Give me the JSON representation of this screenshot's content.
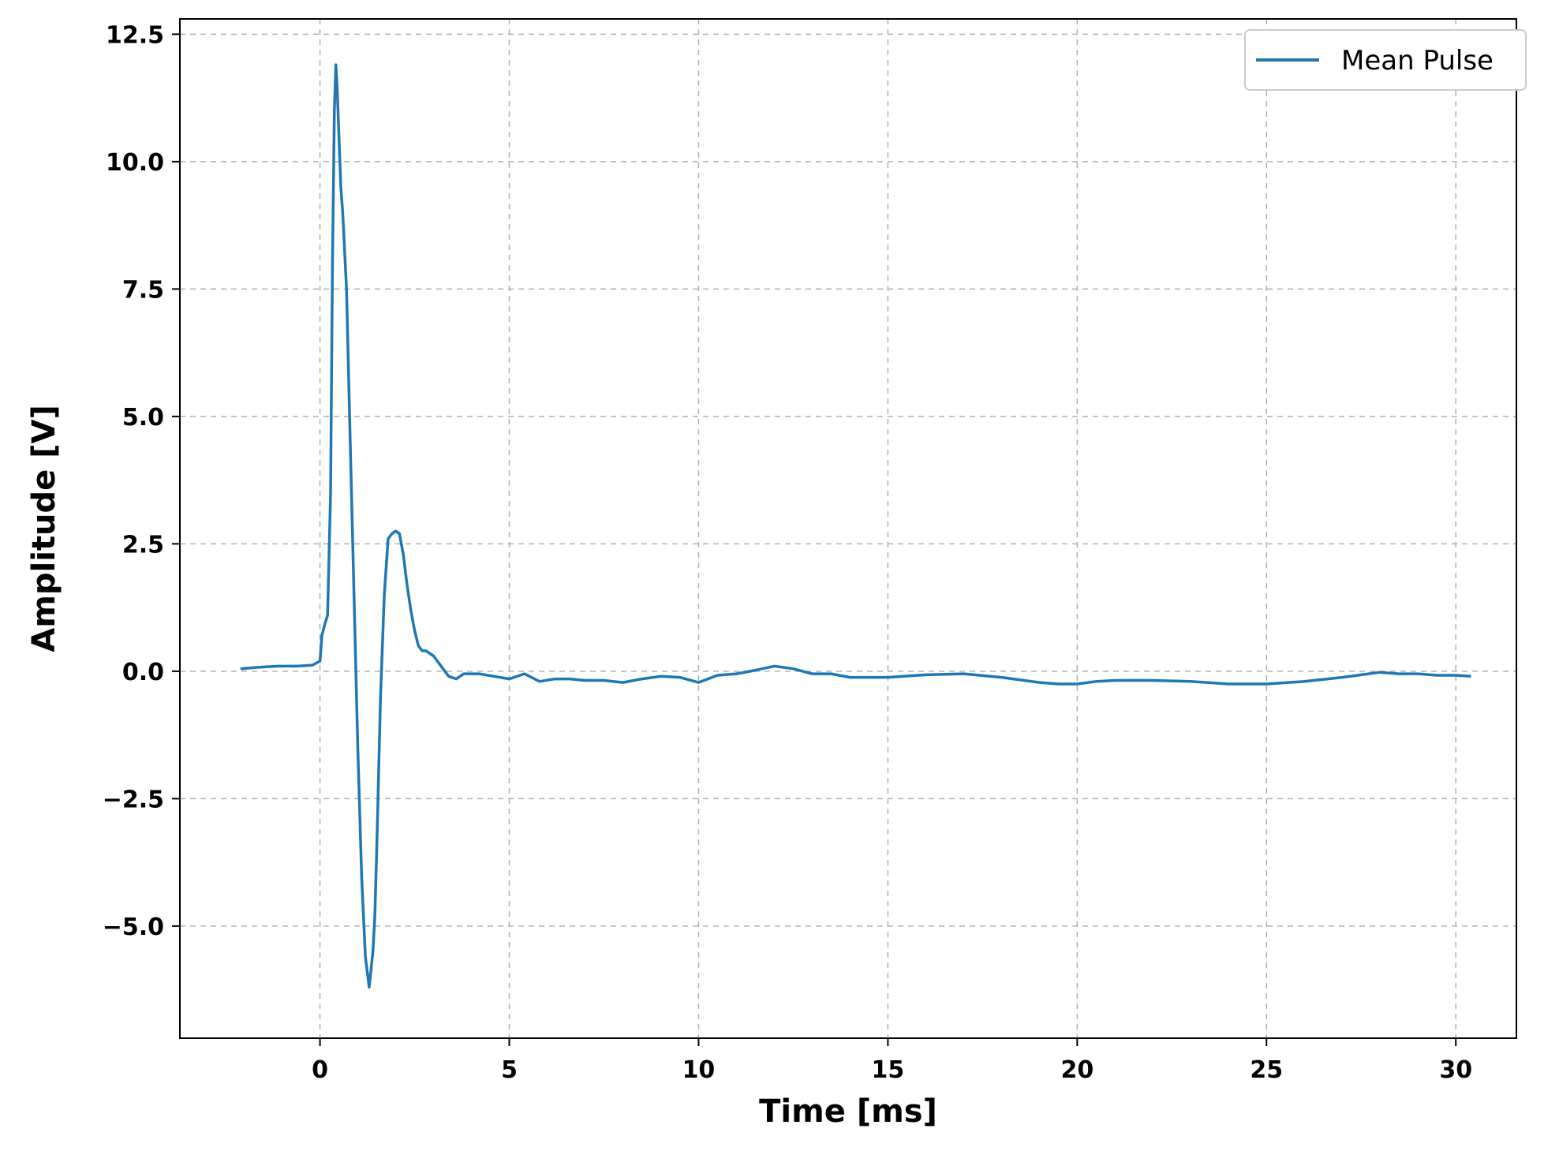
{
  "chart_data": {
    "type": "line",
    "title": "",
    "xlabel": "Time [ms]",
    "ylabel": "Amplitude [V]",
    "xlim": [
      -3.7,
      31.6
    ],
    "ylim": [
      -7.2,
      12.8
    ],
    "xticks": [
      0,
      5,
      10,
      15,
      20,
      25,
      30
    ],
    "xtick_labels": [
      "0",
      "5",
      "10",
      "15",
      "20",
      "25",
      "30"
    ],
    "yticks": [
      12.5,
      10.0,
      7.5,
      5.0,
      2.5,
      0.0,
      -2.5,
      -5.0
    ],
    "ytick_labels": [
      "12.5",
      "10.0",
      "7.5",
      "5.0",
      "2.5",
      "0.0",
      "−2.5",
      "−5.0"
    ],
    "grid": true,
    "grid_style": "dashed",
    "legend_position": "upper right",
    "series": [
      {
        "name": "Mean Pulse",
        "color": "#1f77b4",
        "x": [
          -2.1,
          -1.6,
          -1.1,
          -0.6,
          -0.2,
          0.0,
          0.05,
          0.12,
          0.2,
          0.28,
          0.33,
          0.38,
          0.42,
          0.45,
          0.5,
          0.55,
          0.6,
          0.7,
          0.8,
          0.9,
          1.0,
          1.1,
          1.2,
          1.3,
          1.4,
          1.45,
          1.5,
          1.6,
          1.7,
          1.8,
          1.9,
          2.0,
          2.1,
          2.2,
          2.3,
          2.4,
          2.5,
          2.6,
          2.7,
          2.8,
          3.0,
          3.2,
          3.4,
          3.6,
          3.8,
          4.2,
          4.6,
          5.0,
          5.4,
          5.8,
          6.2,
          6.6,
          7.0,
          7.5,
          8.0,
          8.5,
          9.0,
          9.5,
          10.0,
          10.5,
          11.0,
          11.5,
          12.0,
          12.5,
          13.0,
          13.5,
          14.0,
          15.0,
          16.0,
          17.0,
          18.0,
          19.0,
          19.5,
          20.0,
          20.5,
          21.0,
          22.0,
          23.0,
          24.0,
          25.0,
          26.0,
          27.0,
          28.0,
          28.5,
          29.0,
          29.5,
          30.0,
          30.4
        ],
        "y": [
          0.05,
          0.08,
          0.1,
          0.1,
          0.12,
          0.2,
          0.7,
          0.9,
          1.1,
          3.5,
          8.0,
          11.0,
          11.9,
          11.5,
          10.5,
          9.5,
          9.0,
          7.5,
          4.5,
          1.5,
          -1.5,
          -4.0,
          -5.6,
          -6.2,
          -5.5,
          -4.8,
          -3.5,
          -0.5,
          1.5,
          2.6,
          2.7,
          2.75,
          2.7,
          2.3,
          1.7,
          1.2,
          0.8,
          0.5,
          0.4,
          0.4,
          0.3,
          0.1,
          -0.1,
          -0.15,
          -0.05,
          -0.05,
          -0.1,
          -0.15,
          -0.05,
          -0.2,
          -0.15,
          -0.15,
          -0.18,
          -0.18,
          -0.22,
          -0.15,
          -0.1,
          -0.12,
          -0.22,
          -0.08,
          -0.05,
          0.02,
          0.1,
          0.05,
          -0.05,
          -0.05,
          -0.12,
          -0.12,
          -0.07,
          -0.05,
          -0.12,
          -0.22,
          -0.25,
          -0.25,
          -0.2,
          -0.18,
          -0.18,
          -0.2,
          -0.25,
          -0.25,
          -0.2,
          -0.12,
          -0.02,
          -0.05,
          -0.05,
          -0.08,
          -0.08,
          -0.1
        ]
      }
    ]
  }
}
